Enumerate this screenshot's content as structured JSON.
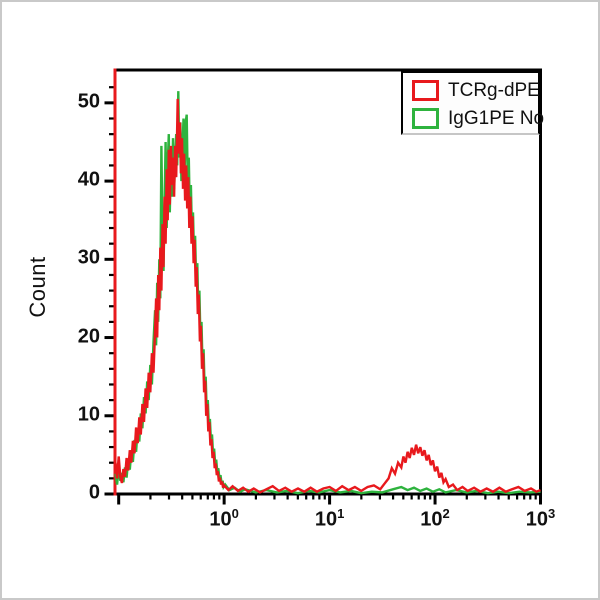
{
  "frame": {
    "border_color": "#c9c9c9",
    "background": "#ffffff"
  },
  "chart_data": {
    "type": "line",
    "title": "",
    "xlabel": "",
    "ylabel": "Count",
    "x_scale": "log10",
    "x_log_range": [
      -1.035,
      3.0
    ],
    "x_tick_base": "10",
    "x_decade_exponents": [
      0,
      1,
      2,
      3
    ],
    "ylim": [
      0,
      54.2
    ],
    "y_major_ticks": [
      0,
      10,
      20,
      30,
      40,
      50
    ],
    "y_minor_step": 2,
    "grid": false,
    "axis_color": "#000000",
    "left_spine_color": "#e8191d",
    "legend": {
      "position": "top-right",
      "entries": [
        {
          "label": "TCRg-dPE",
          "color": "#e8191d"
        },
        {
          "label": "IgG1PE No",
          "color": "#2eb33e"
        }
      ]
    },
    "series": [
      {
        "name": "IgG1PE No",
        "color": "#2eb33e",
        "points": [
          [
            -1.03,
            2.6
          ],
          [
            -1.015,
            1.2
          ],
          [
            -1.0,
            3.4
          ],
          [
            -0.985,
            1.7
          ],
          [
            -0.97,
            2.7
          ],
          [
            -0.955,
            1.5
          ],
          [
            -0.94,
            3.4
          ],
          [
            -0.925,
            2.1
          ],
          [
            -0.91,
            4.4
          ],
          [
            -0.895,
            3.1
          ],
          [
            -0.88,
            5.4
          ],
          [
            -0.865,
            4.1
          ],
          [
            -0.85,
            6.9
          ],
          [
            -0.835,
            5.4
          ],
          [
            -0.82,
            8.4
          ],
          [
            -0.805,
            6.7
          ],
          [
            -0.79,
            10.3
          ],
          [
            -0.775,
            8.4
          ],
          [
            -0.76,
            12.4
          ],
          [
            -0.745,
            10.3
          ],
          [
            -0.73,
            14.4
          ],
          [
            -0.715,
            12.0
          ],
          [
            -0.7,
            16.5
          ],
          [
            -0.685,
            14.0
          ],
          [
            -0.67,
            19.5
          ],
          [
            -0.655,
            23.5
          ],
          [
            -0.645,
            19.0
          ],
          [
            -0.635,
            27.0
          ],
          [
            -0.625,
            22.0
          ],
          [
            -0.615,
            30.0
          ],
          [
            -0.605,
            25.0
          ],
          [
            -0.595,
            44.5
          ],
          [
            -0.585,
            33.0
          ],
          [
            -0.575,
            28.5
          ],
          [
            -0.565,
            37.0
          ],
          [
            -0.555,
            45.0
          ],
          [
            -0.545,
            34.0
          ],
          [
            -0.535,
            42.0
          ],
          [
            -0.525,
            46.0
          ],
          [
            -0.515,
            36.0
          ],
          [
            -0.505,
            43.0
          ],
          [
            -0.495,
            38.0
          ],
          [
            -0.485,
            45.5
          ],
          [
            -0.475,
            39.0
          ],
          [
            -0.465,
            42.5
          ],
          [
            -0.455,
            46.0
          ],
          [
            -0.445,
            42.0
          ],
          [
            -0.435,
            51.5
          ],
          [
            -0.425,
            43.0
          ],
          [
            -0.415,
            47.5
          ],
          [
            -0.405,
            40.0
          ],
          [
            -0.395,
            44.0
          ],
          [
            -0.385,
            48.0
          ],
          [
            -0.375,
            41.0
          ],
          [
            -0.365,
            47.5
          ],
          [
            -0.355,
            48.5
          ],
          [
            -0.345,
            39.0
          ],
          [
            -0.335,
            43.0
          ],
          [
            -0.325,
            35.0
          ],
          [
            -0.315,
            39.5
          ],
          [
            -0.305,
            33.0
          ],
          [
            -0.295,
            36.0
          ],
          [
            -0.285,
            30.0
          ],
          [
            -0.275,
            33.0
          ],
          [
            -0.265,
            27.0
          ],
          [
            -0.255,
            29.5
          ],
          [
            -0.245,
            23.5
          ],
          [
            -0.235,
            26.0
          ],
          [
            -0.225,
            20.0
          ],
          [
            -0.215,
            22.0
          ],
          [
            -0.205,
            16.5
          ],
          [
            -0.195,
            18.5
          ],
          [
            -0.185,
            13.5
          ],
          [
            -0.175,
            15.0
          ],
          [
            -0.165,
            10.5
          ],
          [
            -0.155,
            12.0
          ],
          [
            -0.145,
            8.5
          ],
          [
            -0.135,
            9.6
          ],
          [
            -0.125,
            6.6
          ],
          [
            -0.115,
            7.6
          ],
          [
            -0.105,
            5.0
          ],
          [
            -0.095,
            5.8
          ],
          [
            -0.085,
            3.8
          ],
          [
            -0.075,
            4.4
          ],
          [
            -0.065,
            2.8
          ],
          [
            -0.055,
            3.3
          ],
          [
            -0.045,
            2.0
          ],
          [
            -0.035,
            2.4
          ],
          [
            -0.025,
            1.4
          ],
          [
            -0.015,
            1.7
          ],
          [
            -0.005,
            0.9
          ],
          [
            0.01,
            1.2
          ],
          [
            0.05,
            0.5
          ],
          [
            0.1,
            0.8
          ],
          [
            0.15,
            0.3
          ],
          [
            0.2,
            0.6
          ],
          [
            0.3,
            0.2
          ],
          [
            0.4,
            0.5
          ],
          [
            0.5,
            0.2
          ],
          [
            0.6,
            0.4
          ],
          [
            0.7,
            0.1
          ],
          [
            0.8,
            0.4
          ],
          [
            0.9,
            0.2
          ],
          [
            1.0,
            0.5
          ],
          [
            1.1,
            0.2
          ],
          [
            1.2,
            0.4
          ],
          [
            1.3,
            0.1
          ],
          [
            1.4,
            0.3
          ],
          [
            1.5,
            0.2
          ],
          [
            1.6,
            0.6
          ],
          [
            1.68,
            0.9
          ],
          [
            1.74,
            0.5
          ],
          [
            1.8,
            0.8
          ],
          [
            1.86,
            0.4
          ],
          [
            1.92,
            0.7
          ],
          [
            1.98,
            0.3
          ],
          [
            2.04,
            0.6
          ],
          [
            2.1,
            0.2
          ],
          [
            2.2,
            0.5
          ],
          [
            2.3,
            0.2
          ],
          [
            2.4,
            0.4
          ],
          [
            2.5,
            0.1
          ],
          [
            2.6,
            0.3
          ],
          [
            2.7,
            0.1
          ],
          [
            2.8,
            0.3
          ],
          [
            2.9,
            0.2
          ],
          [
            3.0,
            0.3
          ]
        ]
      },
      {
        "name": "TCRg-dPE",
        "color": "#e8191d",
        "points": [
          [
            -1.03,
            4.0
          ],
          [
            -1.015,
            2.0
          ],
          [
            -1.0,
            4.8
          ],
          [
            -0.985,
            2.2
          ],
          [
            -0.97,
            1.4
          ],
          [
            -0.955,
            3.2
          ],
          [
            -0.94,
            2.2
          ],
          [
            -0.925,
            4.6
          ],
          [
            -0.91,
            3.0
          ],
          [
            -0.895,
            5.6
          ],
          [
            -0.88,
            4.0
          ],
          [
            -0.865,
            6.8
          ],
          [
            -0.85,
            5.2
          ],
          [
            -0.835,
            8.5
          ],
          [
            -0.82,
            6.5
          ],
          [
            -0.805,
            9.8
          ],
          [
            -0.79,
            7.6
          ],
          [
            -0.775,
            11.5
          ],
          [
            -0.76,
            9.2
          ],
          [
            -0.745,
            13.5
          ],
          [
            -0.73,
            11.0
          ],
          [
            -0.715,
            15.5
          ],
          [
            -0.7,
            13.0
          ],
          [
            -0.685,
            18.0
          ],
          [
            -0.67,
            15.5
          ],
          [
            -0.655,
            21.0
          ],
          [
            -0.645,
            25.0
          ],
          [
            -0.635,
            20.0
          ],
          [
            -0.625,
            28.0
          ],
          [
            -0.615,
            23.5
          ],
          [
            -0.605,
            31.5
          ],
          [
            -0.595,
            26.0
          ],
          [
            -0.585,
            34.5
          ],
          [
            -0.575,
            29.0
          ],
          [
            -0.565,
            38.0
          ],
          [
            -0.555,
            32.0
          ],
          [
            -0.545,
            41.5
          ],
          [
            -0.535,
            35.0
          ],
          [
            -0.525,
            44.0
          ],
          [
            -0.515,
            37.0
          ],
          [
            -0.505,
            44.5
          ],
          [
            -0.495,
            39.5
          ],
          [
            -0.485,
            43.0
          ],
          [
            -0.475,
            38.0
          ],
          [
            -0.465,
            44.5
          ],
          [
            -0.455,
            40.5
          ],
          [
            -0.445,
            47.0
          ],
          [
            -0.44,
            50.5
          ],
          [
            -0.43,
            43.5
          ],
          [
            -0.42,
            47.5
          ],
          [
            -0.41,
            41.0
          ],
          [
            -0.4,
            45.5
          ],
          [
            -0.39,
            39.0
          ],
          [
            -0.38,
            43.5
          ],
          [
            -0.37,
            37.5
          ],
          [
            -0.36,
            42.0
          ],
          [
            -0.35,
            36.5
          ],
          [
            -0.34,
            40.5
          ],
          [
            -0.33,
            34.0
          ],
          [
            -0.32,
            38.0
          ],
          [
            -0.31,
            32.0
          ],
          [
            -0.3,
            35.5
          ],
          [
            -0.29,
            29.5
          ],
          [
            -0.28,
            32.5
          ],
          [
            -0.27,
            26.5
          ],
          [
            -0.26,
            29.0
          ],
          [
            -0.25,
            23.0
          ],
          [
            -0.24,
            25.5
          ],
          [
            -0.23,
            19.5
          ],
          [
            -0.22,
            21.5
          ],
          [
            -0.21,
            16.0
          ],
          [
            -0.2,
            18.0
          ],
          [
            -0.19,
            13.0
          ],
          [
            -0.18,
            14.5
          ],
          [
            -0.17,
            10.0
          ],
          [
            -0.16,
            11.5
          ],
          [
            -0.15,
            8.0
          ],
          [
            -0.14,
            9.2
          ],
          [
            -0.13,
            6.2
          ],
          [
            -0.12,
            7.0
          ],
          [
            -0.11,
            4.6
          ],
          [
            -0.1,
            5.4
          ],
          [
            -0.09,
            3.3
          ],
          [
            -0.08,
            3.9
          ],
          [
            -0.07,
            2.4
          ],
          [
            -0.06,
            2.9
          ],
          [
            -0.05,
            1.6
          ],
          [
            -0.04,
            2.1
          ],
          [
            -0.03,
            1.2
          ],
          [
            -0.02,
            1.6
          ],
          [
            -0.01,
            0.8
          ],
          [
            0.0,
            1.1
          ],
          [
            0.04,
            0.5
          ],
          [
            0.08,
            1.0
          ],
          [
            0.13,
            0.4
          ],
          [
            0.18,
            0.8
          ],
          [
            0.23,
            0.3
          ],
          [
            0.28,
            0.7
          ],
          [
            0.34,
            0.2
          ],
          [
            0.4,
            0.6
          ],
          [
            0.46,
            1.0
          ],
          [
            0.52,
            0.4
          ],
          [
            0.58,
            0.8
          ],
          [
            0.64,
            0.3
          ],
          [
            0.7,
            0.7
          ],
          [
            0.76,
            0.3
          ],
          [
            0.82,
            0.8
          ],
          [
            0.88,
            0.3
          ],
          [
            0.94,
            0.7
          ],
          [
            1.0,
            0.9
          ],
          [
            1.06,
            0.4
          ],
          [
            1.12,
            1.0
          ],
          [
            1.18,
            0.5
          ],
          [
            1.24,
            0.9
          ],
          [
            1.3,
            0.4
          ],
          [
            1.36,
            0.9
          ],
          [
            1.42,
            1.1
          ],
          [
            1.48,
            0.6
          ],
          [
            1.52,
            1.3
          ],
          [
            1.56,
            2.0
          ],
          [
            1.59,
            3.3
          ],
          [
            1.62,
            2.6
          ],
          [
            1.65,
            4.0
          ],
          [
            1.68,
            3.4
          ],
          [
            1.7,
            4.8
          ],
          [
            1.72,
            4.0
          ],
          [
            1.74,
            5.4
          ],
          [
            1.76,
            4.6
          ],
          [
            1.78,
            5.9
          ],
          [
            1.8,
            5.0
          ],
          [
            1.82,
            6.3
          ],
          [
            1.84,
            5.2
          ],
          [
            1.86,
            6.0
          ],
          [
            1.88,
            4.9
          ],
          [
            1.9,
            5.6
          ],
          [
            1.92,
            4.3
          ],
          [
            1.94,
            5.0
          ],
          [
            1.96,
            3.7
          ],
          [
            1.98,
            4.3
          ],
          [
            2.0,
            2.9
          ],
          [
            2.02,
            3.5
          ],
          [
            2.04,
            2.1
          ],
          [
            2.06,
            2.7
          ],
          [
            2.08,
            1.5
          ],
          [
            2.1,
            1.9
          ],
          [
            2.13,
            0.9
          ],
          [
            2.17,
            1.2
          ],
          [
            2.21,
            0.5
          ],
          [
            2.26,
            0.9
          ],
          [
            2.31,
            0.4
          ],
          [
            2.37,
            0.8
          ],
          [
            2.43,
            0.3
          ],
          [
            2.49,
            0.7
          ],
          [
            2.55,
            0.3
          ],
          [
            2.61,
            0.8
          ],
          [
            2.67,
            0.3
          ],
          [
            2.73,
            0.6
          ],
          [
            2.79,
            0.9
          ],
          [
            2.85,
            0.4
          ],
          [
            2.91,
            0.7
          ],
          [
            2.96,
            0.3
          ],
          [
            3.0,
            0.5
          ]
        ]
      }
    ]
  }
}
